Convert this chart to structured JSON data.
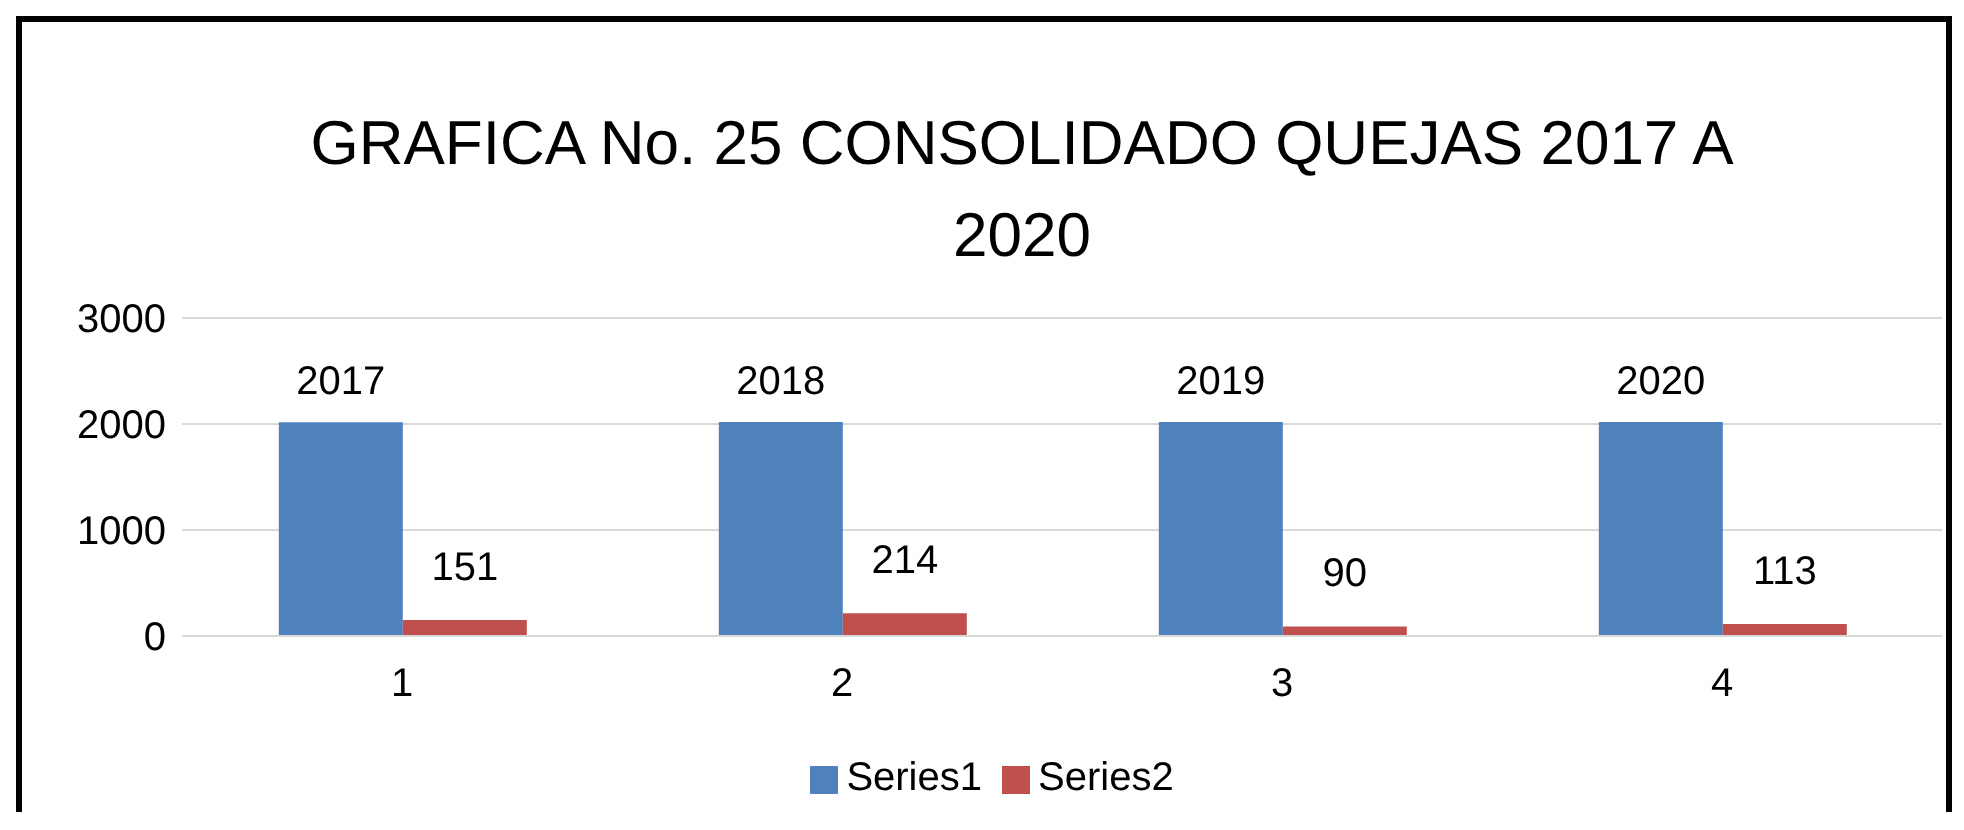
{
  "chart_data": {
    "type": "bar",
    "title": "GRAFICA No. 25 CONSOLIDADO QUEJAS 2017 A 2020",
    "categories": [
      "1",
      "2",
      "3",
      "4"
    ],
    "series": [
      {
        "name": "Series1",
        "color": "#4f81bd",
        "values": [
          2017,
          2018,
          2019,
          2020
        ]
      },
      {
        "name": "Series2",
        "color": "#c0504d",
        "values": [
          151,
          214,
          90,
          113
        ]
      }
    ],
    "ylim": [
      0,
      3000
    ],
    "yticks": [
      0,
      1000,
      2000,
      3000
    ],
    "grid": "y",
    "legend": "bottom",
    "data_labels": true
  }
}
